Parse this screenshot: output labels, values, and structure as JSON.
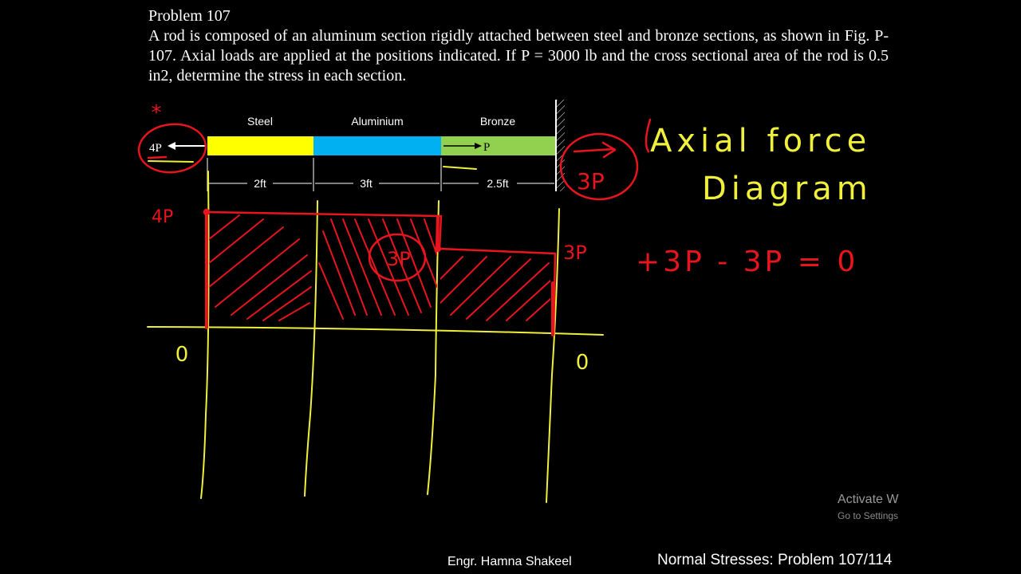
{
  "problem": {
    "title": "Problem 107",
    "text": "A rod is composed of an aluminum section rigidly attached between steel and bronze sections, as shown in Fig. P-107. Axial loads are applied at the positions indicated. If P = 3000 lb and the cross sectional area of the rod is 0.5 in2, determine the stress in each section."
  },
  "rod": {
    "sections": [
      {
        "name": "Steel",
        "length": "2ft",
        "color": "#ffff00"
      },
      {
        "name": "Aluminium",
        "length": "3ft",
        "color": "#00b0f0"
      },
      {
        "name": "Bronze",
        "length": "2.5ft",
        "color": "#92d050"
      }
    ],
    "left_load": "4P",
    "mid_load": "P"
  },
  "annotations": {
    "star": "*",
    "reaction": "3P",
    "left_value": "4P",
    "middle_value": "3P",
    "right_value": "3P",
    "left_zero": "0",
    "right_zero": "0",
    "heading_line1": "Axial force",
    "heading_line2": "Diagram",
    "equation": "+3P - 3P = 0",
    "ink_red": "#e8141e",
    "ink_yellow": "#f0f03c"
  },
  "footer": {
    "author": "Engr. Hamna Shakeel",
    "problem_ref": "Normal Stresses: Problem 107/114"
  },
  "watermark": {
    "title": "Activate W",
    "subtitle": "Go to Settings"
  }
}
